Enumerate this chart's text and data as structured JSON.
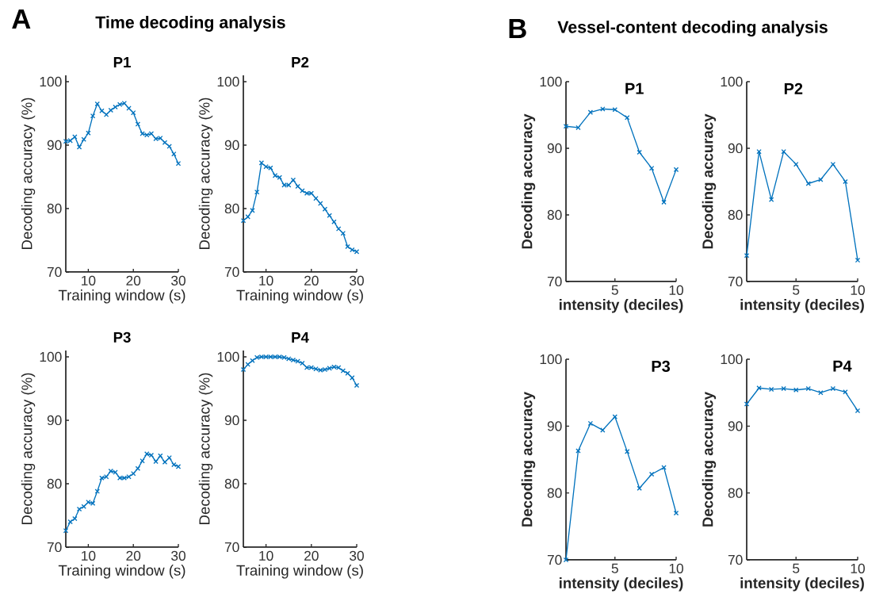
{
  "chart_data": [
    {
      "type": "line",
      "title": "P1",
      "xlabel": "Training window (s)",
      "ylabel": "Decoding accuracy (%)",
      "annotations": [
        "A",
        "Time decoding analysis"
      ],
      "x": [
        5,
        6,
        7,
        8,
        9,
        10,
        11,
        12,
        13,
        14,
        15,
        16,
        17,
        18,
        19,
        20,
        21,
        22,
        23,
        24,
        25,
        26,
        27,
        28,
        29,
        30
      ],
      "values": [
        90.6,
        90.7,
        91.3,
        89.7,
        90.9,
        91.9,
        94.6,
        96.5,
        95.4,
        94.8,
        95.5,
        96.0,
        96.4,
        96.6,
        95.8,
        95.1,
        93.3,
        91.8,
        91.6,
        91.8,
        91.0,
        91.1,
        90.4,
        89.8,
        88.6,
        87.1
      ],
      "color": "#0072bd",
      "marker": "cross",
      "xlim": [
        5,
        30
      ],
      "ylim": [
        70,
        101
      ],
      "xticks": [
        10,
        20,
        30
      ],
      "yticks": [
        70,
        80,
        90,
        100
      ]
    },
    {
      "type": "line",
      "title": "P2",
      "xlabel": "Training window (s)",
      "ylabel": "Decoding accuracy (%)",
      "x": [
        5,
        6,
        7,
        8,
        9,
        10,
        11,
        12,
        13,
        14,
        15,
        16,
        17,
        18,
        19,
        20,
        21,
        22,
        23,
        24,
        25,
        26,
        27,
        28,
        29,
        30
      ],
      "values": [
        78.1,
        78.7,
        79.7,
        82.6,
        87.2,
        86.6,
        86.4,
        85.2,
        84.9,
        83.7,
        83.7,
        84.5,
        83.5,
        82.8,
        82.4,
        82.4,
        81.6,
        80.8,
        79.9,
        78.9,
        77.9,
        76.8,
        76.1,
        74.0,
        73.5,
        73.2
      ],
      "color": "#0072bd",
      "marker": "cross",
      "xlim": [
        5,
        30
      ],
      "ylim": [
        70,
        101
      ],
      "xticks": [
        10,
        20,
        30
      ],
      "yticks": [
        70,
        80,
        90,
        100
      ]
    },
    {
      "type": "line",
      "title": "P3",
      "xlabel": "Training window (s)",
      "ylabel": "Decoding accuracy (%)",
      "x": [
        5,
        6,
        7,
        8,
        9,
        10,
        11,
        12,
        13,
        14,
        15,
        16,
        17,
        18,
        19,
        20,
        21,
        22,
        23,
        24,
        25,
        26,
        27,
        28,
        29,
        30
      ],
      "values": [
        72.6,
        74.0,
        74.5,
        76.0,
        76.4,
        77.1,
        76.9,
        78.8,
        80.9,
        81.1,
        82.0,
        81.8,
        80.9,
        80.9,
        81.1,
        81.6,
        82.4,
        83.6,
        84.7,
        84.5,
        83.5,
        84.4,
        83.4,
        84.1,
        83.0,
        82.7
      ],
      "color": "#0072bd",
      "marker": "cross",
      "xlim": [
        5,
        30
      ],
      "ylim": [
        70,
        101
      ],
      "xticks": [
        10,
        20,
        30
      ],
      "yticks": [
        70,
        80,
        90,
        100
      ]
    },
    {
      "type": "line",
      "title": "P4",
      "xlabel": "Training window (s)",
      "ylabel": "Decoding accuracy (%)",
      "x": [
        5,
        6,
        7,
        8,
        9,
        10,
        11,
        12,
        13,
        14,
        15,
        16,
        17,
        18,
        19,
        20,
        21,
        22,
        23,
        24,
        25,
        26,
        27,
        28,
        29,
        30
      ],
      "values": [
        98.0,
        98.8,
        99.4,
        99.9,
        100.0,
        100.0,
        100.0,
        100.0,
        100.0,
        99.9,
        99.7,
        99.5,
        99.3,
        99.0,
        98.3,
        98.3,
        98.1,
        97.9,
        98.0,
        98.2,
        98.4,
        98.3,
        97.8,
        97.4,
        96.7,
        95.5
      ],
      "color": "#0072bd",
      "marker": "cross",
      "xlim": [
        5,
        30
      ],
      "ylim": [
        70,
        101
      ],
      "xticks": [
        10,
        20,
        30
      ],
      "yticks": [
        70,
        80,
        90,
        100
      ]
    },
    {
      "type": "line",
      "title": "P1",
      "xlabel": "intensity (deciles)",
      "ylabel": "Decoding accuracy",
      "annotations": [
        "B",
        "Vessel-content decoding analysis"
      ],
      "x": [
        1,
        2,
        3,
        4,
        5,
        6,
        7,
        8,
        9,
        10
      ],
      "values": [
        93.3,
        93.1,
        95.4,
        95.9,
        95.8,
        94.6,
        89.4,
        87.0,
        81.9,
        86.8
      ],
      "color": "#0072bd",
      "marker": "cross",
      "xlim": [
        1,
        10
      ],
      "ylim": [
        70,
        100
      ],
      "xticks": [
        5,
        10
      ],
      "yticks": [
        70,
        80,
        90,
        100
      ]
    },
    {
      "type": "line",
      "title": "P2",
      "xlabel": "intensity (deciles)",
      "ylabel": "Decoding accuracy",
      "x": [
        1,
        2,
        3,
        4,
        5,
        6,
        7,
        8,
        9,
        10
      ],
      "values": [
        73.9,
        89.5,
        82.3,
        89.5,
        87.6,
        84.7,
        85.3,
        87.6,
        85.0,
        73.2
      ],
      "color": "#0072bd",
      "marker": "cross",
      "xlim": [
        1,
        10
      ],
      "ylim": [
        70,
        100
      ],
      "xticks": [
        5,
        10
      ],
      "yticks": [
        70,
        80,
        90,
        100
      ]
    },
    {
      "type": "line",
      "title": "P3",
      "xlabel": "intensity (deciles)",
      "ylabel": "Decoding accuracy",
      "x": [
        1,
        2,
        3,
        4,
        5,
        6,
        7,
        8,
        9,
        10
      ],
      "values": [
        70.0,
        86.3,
        90.4,
        89.4,
        91.4,
        86.2,
        80.7,
        82.8,
        83.8,
        77.0
      ],
      "color": "#0072bd",
      "marker": "cross",
      "xlim": [
        1,
        10
      ],
      "ylim": [
        70,
        100
      ],
      "xticks": [
        5,
        10
      ],
      "yticks": [
        70,
        80,
        90,
        100
      ]
    },
    {
      "type": "line",
      "title": "P4",
      "xlabel": "intensity (deciles)",
      "ylabel": "Decoding accuracy",
      "x": [
        1,
        2,
        3,
        4,
        5,
        6,
        7,
        8,
        9,
        10
      ],
      "values": [
        93.3,
        95.7,
        95.5,
        95.6,
        95.4,
        95.6,
        95.0,
        95.6,
        95.1,
        92.3
      ],
      "color": "#0072bd",
      "marker": "cross",
      "xlim": [
        1,
        10
      ],
      "ylim": [
        70,
        100
      ],
      "xticks": [
        5,
        10
      ],
      "yticks": [
        70,
        80,
        90,
        100
      ]
    }
  ]
}
